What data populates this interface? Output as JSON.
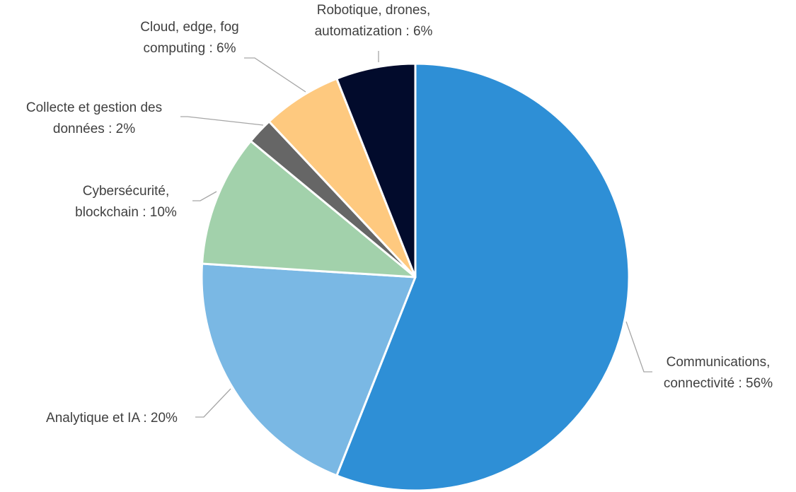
{
  "chart_data": {
    "type": "pie",
    "title": "",
    "start": "12 o'clock",
    "direction": "clockwise",
    "slices": [
      {
        "lines": [
          "Communications,",
          "connectivité  : 56%"
        ],
        "value": 56,
        "color": "#2e8fd6"
      },
      {
        "lines": [
          "Analytique et IA : 20%"
        ],
        "value": 20,
        "color": "#7ab8e4"
      },
      {
        "lines": [
          "Cybersécurité,",
          "blockchain : 10%"
        ],
        "value": 10,
        "color": "#a2d1ab"
      },
      {
        "lines": [
          "Collecte et gestion des",
          "données : 2%"
        ],
        "value": 2,
        "color": "#666666"
      },
      {
        "lines": [
          "Cloud, edge, fog",
          "computing : 6%"
        ],
        "value": 6,
        "color": "#fec97f"
      },
      {
        "lines": [
          "Robotique, drones,",
          "automatization : 6%"
        ],
        "value": 6,
        "color": "#020b2c"
      }
    ]
  }
}
